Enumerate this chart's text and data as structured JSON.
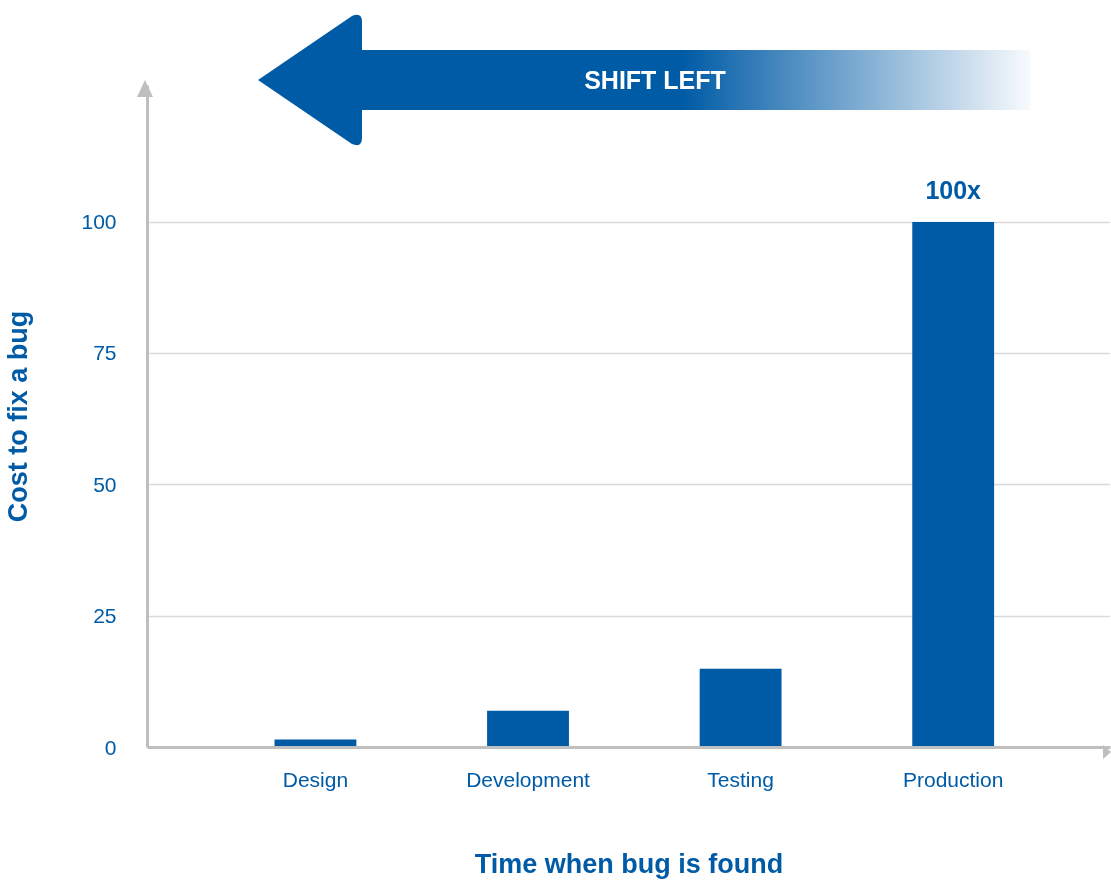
{
  "chart_data": {
    "type": "bar",
    "categories": [
      "Design",
      "Development",
      "Testing",
      "Production"
    ],
    "values": [
      1.5,
      7,
      15,
      100
    ],
    "value_labels": [
      null,
      null,
      null,
      "100x"
    ],
    "color": "#005ba6",
    "xlabel": "Time when bug is found",
    "ylabel": "Cost to fix a bug",
    "ylim": [
      0,
      126
    ],
    "yticks": [
      0,
      25,
      50,
      75,
      100
    ],
    "grid": "y",
    "annotations": [
      "SHIFT LEFT"
    ]
  }
}
